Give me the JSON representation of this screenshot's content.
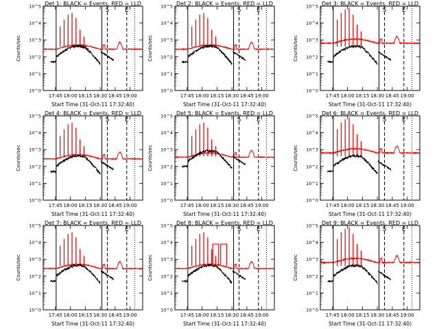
{
  "chart_data": [
    {
      "type": "line",
      "title": "Det 1: BLACK = Events, RED = LLD",
      "variant": "a",
      "ylabel": "Counts/sec",
      "xlabel": "Start Time (31-Oct-11 17:32:40)"
    },
    {
      "type": "line",
      "title": "Det 2: BLACK = Events, RED = LLD",
      "variant": "b",
      "ylabel": "Counts/sec",
      "xlabel": "Start Time (31-Oct-11 17:32:40)"
    },
    {
      "type": "line",
      "title": "Det 3: BLACK = Events, RED = LLD",
      "variant": "c",
      "ylabel": "Counts/sec",
      "xlabel": "Start Time (31-Oct-11 17:32:40)"
    },
    {
      "type": "line",
      "title": "Det 4: BLACK = Events, RED = LLD",
      "variant": "a",
      "ylabel": "Counts/sec",
      "xlabel": "Start Time (31-Oct-11 17:32:40)"
    },
    {
      "type": "line",
      "title": "Det 5: BLACK = Events, RED = LLD",
      "variant": "d",
      "ylabel": "Counts/sec",
      "xlabel": "Start Time (31-Oct-11 17:32:40)"
    },
    {
      "type": "line",
      "title": "Det 6: BLACK = Events, RED = LLD",
      "variant": "c",
      "ylabel": "Counts/sec",
      "xlabel": "Start Time (31-Oct-11 17:32:40)"
    },
    {
      "type": "line",
      "title": "Det 7: BLACK = Events, RED = LLD",
      "variant": "a",
      "ylabel": "Counts/sec",
      "xlabel": "Start Time (31-Oct-11 17:32:40)"
    },
    {
      "type": "line",
      "title": "Det 8: BLACK = Events, RED = LLD",
      "variant": "e",
      "ylabel": "Counts/sec",
      "xlabel": "Start Time (31-Oct-11 17:32:40)"
    },
    {
      "type": "line",
      "title": "Det 9: BLACK = Events, RED = LLD",
      "variant": "c",
      "ylabel": "Counts/sec",
      "xlabel": "Start Time (31-Oct-11 17:32:40)"
    }
  ],
  "shared": {
    "y_scale": "log",
    "ylim": [
      1,
      100000
    ],
    "y_ticks": [
      "10^0",
      "10^1",
      "10^2",
      "10^3",
      "10^4",
      "10^5"
    ],
    "x_ticks": [
      "17:45",
      "18:00",
      "18:15",
      "18:30",
      "18:45",
      "19:00"
    ],
    "x_tick_minutes": [
      12.33,
      27.33,
      42.33,
      57.33,
      72.33,
      87.33
    ],
    "x_range_minutes": [
      0,
      100
    ],
    "markers": [
      {
        "label": "S",
        "minute": 64.5,
        "style": "dashed"
      },
      {
        "label": "E",
        "minute": 84.0,
        "style": "dashed"
      },
      {
        "label": "",
        "minute": 13.0,
        "style": "solid"
      },
      {
        "label": "",
        "minute": 59.0,
        "style": "solid"
      },
      {
        "label": "",
        "minute": 92.0,
        "style": "dotted"
      }
    ],
    "series": [
      {
        "name": "Events",
        "color": "#000000"
      },
      {
        "name": "LLD",
        "color": "#ff0000"
      }
    ]
  }
}
